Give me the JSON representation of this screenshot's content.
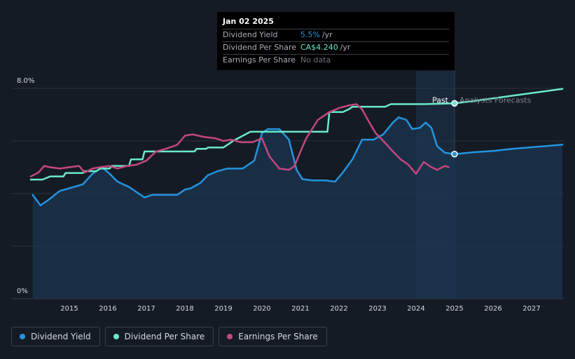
{
  "colors": {
    "background": "#151b24",
    "dividend_yield": "#2394df",
    "dividend_per_share": "#6ae9c9",
    "earnings_per_share": "#c4477f",
    "forecast_band": "#1a2a3d",
    "yield_fill": "#1b3550"
  },
  "tooltip": {
    "date": "Jan 02 2025",
    "rows": [
      {
        "label": "Dividend Yield",
        "value": "5.5%",
        "unit": "/yr",
        "color": "#2394df"
      },
      {
        "label": "Dividend Per Share",
        "value": "CA$4.240",
        "unit": "/yr",
        "color": "#6ae9c9"
      },
      {
        "label": "Earnings Per Share",
        "value": "No data",
        "unit": "",
        "color": "#6b7079"
      }
    ]
  },
  "legend": [
    {
      "label": "Dividend Yield",
      "color": "#2394df"
    },
    {
      "label": "Dividend Per Share",
      "color": "#6ae9c9"
    },
    {
      "label": "Earnings Per Share",
      "color": "#c4477f"
    }
  ],
  "chart_data": {
    "type": "line",
    "title": "",
    "xlabel": "",
    "ylabel": "",
    "ylim": [
      0,
      8.0
    ],
    "xlim": [
      2014.0,
      2027.8
    ],
    "y_axis_labels": [
      {
        "value": 8.0,
        "text": "8.0%"
      },
      {
        "value": 0,
        "text": "0%"
      }
    ],
    "x_ticks": [
      2015,
      2016,
      2017,
      2018,
      2019,
      2020,
      2021,
      2022,
      2023,
      2024,
      2025,
      2026,
      2027
    ],
    "forecast_start": 2025.0,
    "past_label": "Past",
    "forecast_label": "Analysts Forecasts",
    "series": [
      {
        "name": "Dividend Yield",
        "role": "yield",
        "x": [
          2014.05,
          2014.25,
          2014.45,
          2014.75,
          2015.0,
          2015.35,
          2015.6,
          2015.85,
          2016.05,
          2016.25,
          2016.55,
          2016.8,
          2016.95,
          2017.15,
          2017.5,
          2017.8,
          2018.0,
          2018.15,
          2018.4,
          2018.6,
          2018.85,
          2019.1,
          2019.5,
          2019.8,
          2020.0,
          2020.15,
          2020.45,
          2020.7,
          2020.9,
          2021.05,
          2021.3,
          2021.65,
          2021.9,
          2022.1,
          2022.35,
          2022.6,
          2022.9,
          2023.15,
          2023.4,
          2023.55,
          2023.75,
          2023.9,
          2024.1,
          2024.25,
          2024.4,
          2024.55,
          2024.75,
          2025.0,
          2025.5,
          2026.0,
          2026.5,
          2027.0,
          2027.5,
          2027.8
        ],
        "values": [
          3.95,
          3.55,
          3.75,
          4.1,
          4.2,
          4.35,
          4.75,
          5.0,
          4.75,
          4.45,
          4.25,
          4.0,
          3.85,
          3.95,
          3.95,
          3.95,
          4.15,
          4.2,
          4.4,
          4.7,
          4.85,
          4.95,
          4.95,
          5.25,
          6.3,
          6.45,
          6.45,
          6.05,
          4.9,
          4.55,
          4.5,
          4.5,
          4.45,
          4.8,
          5.3,
          6.05,
          6.05,
          6.25,
          6.7,
          6.9,
          6.8,
          6.45,
          6.5,
          6.7,
          6.5,
          5.8,
          5.55,
          5.5,
          5.57,
          5.62,
          5.7,
          5.76,
          5.82,
          5.86
        ]
      },
      {
        "name": "Dividend Per Share",
        "role": "dps",
        "x": [
          2014.0,
          2014.3,
          2014.45,
          2014.5,
          2014.85,
          2014.9,
          2015.35,
          2015.4,
          2015.7,
          2015.8,
          2016.05,
          2016.1,
          2016.55,
          2016.6,
          2016.9,
          2016.95,
          2017.35,
          2017.45,
          2017.9,
          2017.95,
          2018.25,
          2018.3,
          2018.55,
          2018.6,
          2019.0,
          2019.15,
          2019.25,
          2019.7,
          2020.0,
          2021.3,
          2021.7,
          2021.75,
          2022.1,
          2022.25,
          2022.35,
          2022.85,
          2023.2,
          2023.35,
          2023.4,
          2024.2,
          2025.0,
          2025.5,
          2026.0,
          2026.5,
          2027.0,
          2027.5,
          2027.8
        ],
        "values": [
          4.53,
          4.53,
          4.62,
          4.65,
          4.65,
          4.78,
          4.78,
          4.85,
          4.85,
          4.95,
          4.95,
          5.05,
          5.05,
          5.3,
          5.3,
          5.6,
          5.6,
          5.6,
          5.6,
          5.6,
          5.6,
          5.7,
          5.7,
          5.75,
          5.75,
          5.9,
          6.0,
          6.35,
          6.35,
          6.35,
          6.35,
          7.1,
          7.1,
          7.2,
          7.3,
          7.3,
          7.3,
          7.4,
          7.4,
          7.4,
          7.43,
          7.52,
          7.62,
          7.72,
          7.82,
          7.92,
          7.98
        ]
      },
      {
        "name": "Earnings Per Share",
        "role": "eps",
        "x": [
          2014.0,
          2014.2,
          2014.35,
          2014.5,
          2014.75,
          2015.0,
          2015.25,
          2015.4,
          2015.6,
          2015.8,
          2016.05,
          2016.25,
          2016.5,
          2016.75,
          2017.0,
          2017.25,
          2017.5,
          2017.8,
          2018.0,
          2018.2,
          2018.5,
          2018.8,
          2019.0,
          2019.2,
          2019.45,
          2019.75,
          2020.0,
          2020.2,
          2020.45,
          2020.7,
          2020.85,
          2021.0,
          2021.15,
          2021.45,
          2021.75,
          2022.0,
          2022.25,
          2022.45,
          2022.6,
          2022.75,
          2022.95,
          2023.15,
          2023.4,
          2023.6,
          2023.8,
          2024.0,
          2024.2,
          2024.4,
          2024.55,
          2024.75,
          2024.85
        ],
        "values": [
          4.65,
          4.8,
          5.05,
          5.0,
          4.95,
          5.0,
          5.05,
          4.8,
          4.95,
          5.0,
          5.05,
          4.95,
          5.05,
          5.1,
          5.25,
          5.6,
          5.7,
          5.85,
          6.2,
          6.25,
          6.15,
          6.1,
          6.0,
          6.05,
          5.95,
          5.95,
          6.1,
          5.4,
          4.95,
          4.9,
          5.05,
          5.6,
          6.1,
          6.8,
          7.1,
          7.25,
          7.35,
          7.4,
          7.2,
          6.8,
          6.3,
          6.0,
          5.6,
          5.3,
          5.1,
          4.75,
          5.2,
          5.0,
          4.9,
          5.05,
          5.0
        ]
      }
    ],
    "highlight_points": [
      {
        "series": "Dividend Per Share",
        "x": 2025.0,
        "value": 7.43
      },
      {
        "series": "Dividend Yield",
        "x": 2025.0,
        "value": 5.5
      }
    ]
  }
}
